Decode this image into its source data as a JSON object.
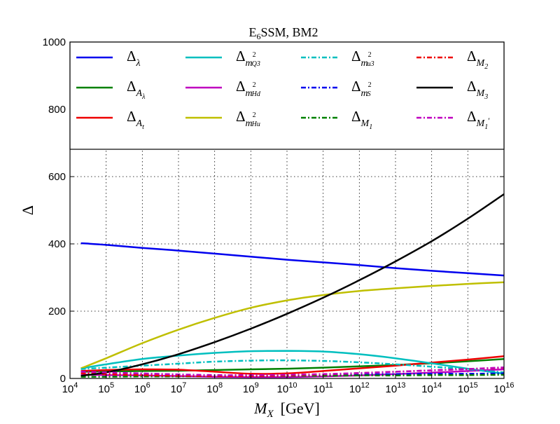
{
  "chart_data": {
    "type": "line",
    "title": "E6SSM, BM2",
    "title_parts": {
      "base": "E",
      "sub": "6",
      "rest": "SSM, BM2"
    },
    "xlabel": {
      "var": "M",
      "sub": "X",
      "unit": "[GeV]"
    },
    "ylabel": "Δ",
    "x_scale": "log",
    "xlim": [
      10000,
      10000000000000000
    ],
    "ylim": [
      0,
      1000
    ],
    "grid": true,
    "legend_position": "top (upper band)",
    "x_ticks": [
      {
        "base": "10",
        "exp": "4",
        "value": 10000
      },
      {
        "base": "10",
        "exp": "5",
        "value": 100000
      },
      {
        "base": "10",
        "exp": "6",
        "value": 1000000
      },
      {
        "base": "10",
        "exp": "7",
        "value": 10000000
      },
      {
        "base": "10",
        "exp": "8",
        "value": 100000000
      },
      {
        "base": "10",
        "exp": "9",
        "value": 1000000000
      },
      {
        "base": "10",
        "exp": "10",
        "value": 10000000000
      },
      {
        "base": "10",
        "exp": "11",
        "value": 100000000000
      },
      {
        "base": "10",
        "exp": "12",
        "value": 1000000000000
      },
      {
        "base": "10",
        "exp": "13",
        "value": 10000000000000
      },
      {
        "base": "10",
        "exp": "14",
        "value": 100000000000000
      },
      {
        "base": "10",
        "exp": "15",
        "value": 1000000000000000
      },
      {
        "base": "10",
        "exp": "16",
        "value": 10000000000000000
      }
    ],
    "y_ticks": [
      "0",
      "200",
      "400",
      "600",
      "800",
      "1000"
    ],
    "x": [
      20000,
      100000,
      1000000,
      10000000,
      100000000,
      1000000000,
      10000000000,
      100000000000,
      1000000000000,
      10000000000000,
      100000000000000,
      1000000000000000,
      10000000000000000
    ],
    "series": [
      {
        "label": {
          "base": "Δ",
          "sub": "λ",
          "sup": "",
          "subsub": "",
          "prime": ""
        },
        "color": "#0000ee",
        "dash": "solid",
        "values": [
          402,
          397,
          388,
          380,
          371,
          362,
          353,
          345,
          337,
          328,
          320,
          313,
          306
        ]
      },
      {
        "label": {
          "base": "Δ",
          "sub": "A",
          "sup": "",
          "subsub": "λ",
          "prime": ""
        },
        "color": "#008000",
        "dash": "solid",
        "values": [
          20,
          21,
          22,
          23,
          25,
          27,
          29,
          32,
          36,
          40,
          45,
          51,
          58
        ]
      },
      {
        "label": {
          "base": "Δ",
          "sub": "A",
          "sup": "",
          "subsub": "t",
          "prime": ""
        },
        "color": "#ee0000",
        "dash": "solid",
        "values": [
          22,
          25,
          27,
          26,
          20,
          14,
          15,
          22,
          30,
          38,
          47,
          56,
          66
        ]
      },
      {
        "label": {
          "base": "Δ",
          "sub": "m",
          "sup": "2",
          "subsub": "Q3",
          "prime": ""
        },
        "color": "#00bfbf",
        "dash": "solid",
        "values": [
          30,
          42,
          58,
          68,
          76,
          81,
          82,
          80,
          72,
          60,
          45,
          29,
          14
        ]
      },
      {
        "label": {
          "base": "Δ",
          "sub": "m",
          "sup": "2",
          "subsub": "Hd",
          "prime": ""
        },
        "color": "#bf00bf",
        "dash": "solid",
        "values": [
          12,
          10,
          9,
          7,
          5,
          4,
          4,
          6,
          9,
          13,
          17,
          22,
          27
        ]
      },
      {
        "label": {
          "base": "Δ",
          "sub": "m",
          "sup": "2",
          "subsub": "Hu",
          "prime": ""
        },
        "color": "#bfbf00",
        "dash": "solid",
        "values": [
          30,
          60,
          105,
          145,
          180,
          210,
          232,
          248,
          260,
          268,
          275,
          281,
          286
        ]
      },
      {
        "label": {
          "base": "Δ",
          "sub": "m",
          "sup": "2",
          "subsub": "u3",
          "prime": ""
        },
        "color": "#00bfbf",
        "dash": "dashdot",
        "values": [
          28,
          32,
          38,
          44,
          50,
          53,
          54,
          52,
          48,
          42,
          35,
          27,
          18
        ]
      },
      {
        "label": {
          "base": "Δ",
          "sub": "m",
          "sup": "2",
          "subsub": "S",
          "prime": ""
        },
        "color": "#0000ee",
        "dash": "dashdot",
        "values": [
          20,
          18,
          14,
          11,
          9,
          9,
          10,
          11,
          12,
          13,
          14,
          14,
          15
        ]
      },
      {
        "label": {
          "base": "Δ",
          "sub": "M",
          "sup": "",
          "subsub": "1",
          "prime": ""
        },
        "color": "#008000",
        "dash": "dashdot",
        "values": [
          5,
          5,
          6,
          6,
          7,
          7,
          8,
          8,
          9,
          9,
          10,
          10,
          11
        ]
      },
      {
        "label": {
          "base": "Δ",
          "sub": "M",
          "sup": "",
          "subsub": "2",
          "prime": ""
        },
        "color": "#ee0000",
        "dash": "dashdot",
        "values": [
          15,
          13,
          10,
          8,
          7,
          7,
          9,
          12,
          16,
          20,
          24,
          28,
          32
        ]
      },
      {
        "label": {
          "base": "Δ",
          "sub": "M",
          "sup": "",
          "subsub": "3",
          "prime": ""
        },
        "color": "#000000",
        "dash": "solid",
        "values": [
          8,
          18,
          42,
          72,
          108,
          148,
          192,
          240,
          292,
          348,
          408,
          475,
          548
        ]
      },
      {
        "label": {
          "base": "Δ",
          "sub": "M",
          "sup": "",
          "subsub": "1",
          "prime": "′"
        },
        "color": "#bf00bf",
        "dash": "dashdot",
        "values": [
          20,
          18,
          15,
          12,
          10,
          10,
          11,
          13,
          16,
          20,
          24,
          28,
          33
        ]
      }
    ]
  }
}
